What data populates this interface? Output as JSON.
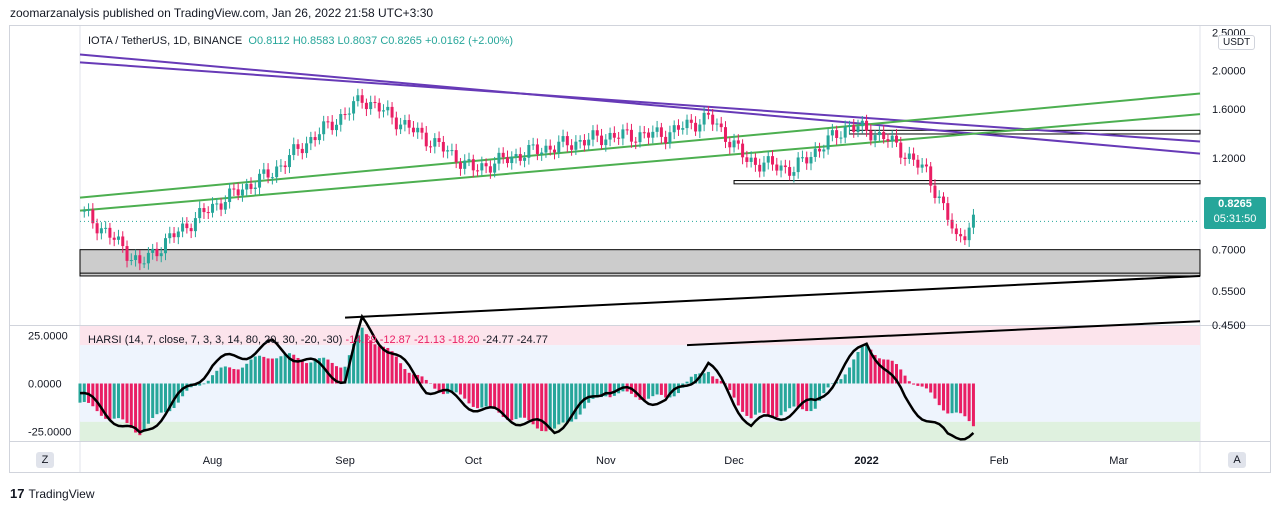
{
  "header": {
    "published": "zoomarzanalysis published on TradingView.com, Jan 26, 2022 21:58 UTC+3:30"
  },
  "legend": {
    "symbol": "IOTA / TetherUS, 1D, BINANCE",
    "open": "O0.8112",
    "high": "H0.8583",
    "low": "L0.8037",
    "close": "C0.8265",
    "change": "+0.0162 (+2.00%)"
  },
  "harsi": {
    "label": "HARSI",
    "params": "(14, 7, close, 7, 3, 3, 14, 80, 20, 30, -20, -30)",
    "values": [
      "-14.29",
      "-12.87",
      "-21.13",
      "-18.20"
    ],
    "values2": [
      "-24.77",
      "-24.77"
    ]
  },
  "currency": "USDT",
  "price_badge": {
    "price": "0.8265",
    "countdown": "05:31:50"
  },
  "price_axis": [
    "2.5000",
    "2.0000",
    "1.6000",
    "1.2000",
    "0.9000",
    "0.7000",
    "0.5500",
    "0.4500"
  ],
  "osc_axis": [
    "25.0000",
    "0.0000",
    "-25.0000"
  ],
  "time_axis": [
    "Aug",
    "Sep",
    "Oct",
    "Nov",
    "Dec",
    "2022",
    "Feb",
    "Mar"
  ],
  "buttons": {
    "zoom": "Z",
    "auto": "A"
  },
  "footer": {
    "logo": "17",
    "brand": "TradingView"
  },
  "colors": {
    "up": "#26a69a",
    "down": "#e91e63",
    "purple": "#673ab7",
    "green": "#4caf50",
    "zone": "#cccccc"
  },
  "chart_data": [
    {
      "type": "candlestick",
      "title": "IOTA / TetherUS, 1D, BINANCE",
      "y_scale": "log",
      "ylim": [
        0.45,
        2.6
      ],
      "x": [
        "2021-07-01",
        "2021-07-15",
        "2021-08-01",
        "2021-08-15",
        "2021-09-01",
        "2021-09-05",
        "2021-09-15",
        "2021-10-01",
        "2021-10-15",
        "2021-11-01",
        "2021-11-15",
        "2021-11-25",
        "2021-12-04",
        "2021-12-15",
        "2021-12-28",
        "2022-01-05",
        "2022-01-15",
        "2022-01-22",
        "2022-01-26"
      ],
      "close": [
        0.88,
        0.64,
        0.9,
        1.1,
        1.55,
        1.7,
        1.45,
        1.12,
        1.25,
        1.36,
        1.38,
        1.52,
        1.18,
        1.12,
        1.45,
        1.36,
        1.1,
        0.74,
        0.8265
      ],
      "last": {
        "open": 0.8112,
        "high": 0.8583,
        "low": 0.8037,
        "close": 0.8265
      },
      "support_zone": [
        0.6,
        0.7
      ],
      "resistance_zone": [
        1.38,
        1.41
      ]
    },
    {
      "type": "histogram",
      "title": "HARSI",
      "ylim": [
        -30,
        30
      ],
      "levels": [
        20,
        30,
        -20,
        -30
      ],
      "x": [
        "2021-07-01",
        "2021-07-15",
        "2021-08-01",
        "2021-08-15",
        "2021-09-01",
        "2021-09-05",
        "2021-09-20",
        "2021-10-05",
        "2021-10-20",
        "2021-11-01",
        "2021-11-15",
        "2021-11-25",
        "2021-12-05",
        "2021-12-20",
        "2022-01-01",
        "2022-01-10",
        "2022-01-20",
        "2022-01-26"
      ],
      "values": [
        -10,
        -25,
        5,
        15,
        10,
        28,
        0,
        -14,
        -25,
        -5,
        -8,
        8,
        -18,
        -12,
        20,
        5,
        -14,
        -21
      ],
      "rsi_line": [
        -5,
        -28,
        10,
        20,
        2,
        32,
        -2,
        -15,
        -24,
        -2,
        -10,
        10,
        -22,
        -10,
        22,
        -8,
        -28,
        -25
      ]
    }
  ]
}
